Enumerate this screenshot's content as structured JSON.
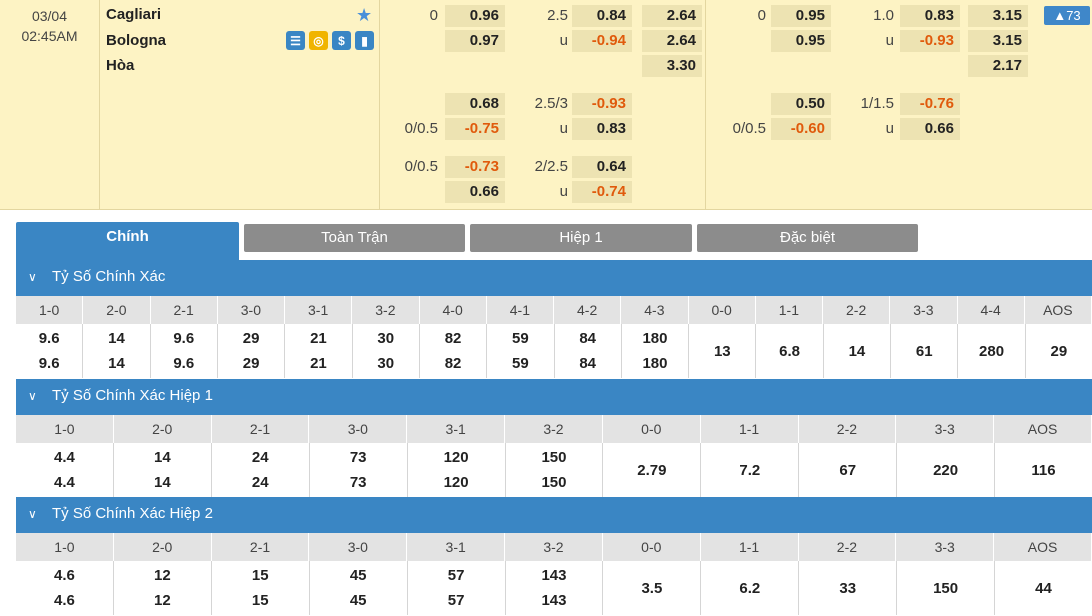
{
  "match": {
    "date": "03/04",
    "time": "02:45AM",
    "home": "Cagliari",
    "away": "Bologna",
    "draw": "Hòa",
    "badge": "▲73",
    "icons": [
      "lineup-icon",
      "coin-icon",
      "dollar-icon",
      "stats-icon"
    ],
    "main_odds": {
      "ft_hdp": {
        "line": "0",
        "home": "0.96",
        "away": "0.97"
      },
      "ft_ou": {
        "line": "2.5",
        "under_label": "u",
        "over": "0.84",
        "under": "-0.94"
      },
      "ft_1x2": {
        "home": "2.64",
        "away": "2.64",
        "draw": "3.30"
      },
      "h1_hdp": {
        "line": "0",
        "home": "0.95",
        "away": "0.95"
      },
      "h1_ou": {
        "line": "1.0",
        "under_label": "u",
        "over": "0.83",
        "under": "-0.93"
      },
      "h1_1x2": {
        "home": "3.15",
        "away": "3.15",
        "draw": "2.17"
      }
    },
    "alt_odds": [
      {
        "hdp_line": "",
        "hdp_line2": "0/0.5",
        "hdp_home": "0.68",
        "hdp_away": "-0.75",
        "ou_line": "2.5/3",
        "ou_label": "u",
        "ou_over": "-0.93",
        "ou_under": "0.83",
        "h1_line": "",
        "h1_line2": "0/0.5",
        "h1_home": "0.50",
        "h1_away": "-0.60",
        "h1_ou_line": "1/1.5",
        "h1_ou_label": "u",
        "h1_ou_over": "-0.76",
        "h1_ou_under": "0.66"
      },
      {
        "hdp_line": "0/0.5",
        "hdp_home": "-0.73",
        "hdp_away": "0.66",
        "ou_line": "2/2.5",
        "ou_label": "u",
        "ou_over": "0.64",
        "ou_under": "-0.74"
      }
    ]
  },
  "tabs": [
    "Chính",
    "Toàn Trận",
    "Hiệp 1",
    "Đặc biệt"
  ],
  "sections": [
    {
      "title": "Tỷ Số Chính Xác",
      "headers": [
        "1-0",
        "2-0",
        "2-1",
        "3-0",
        "3-1",
        "3-2",
        "4-0",
        "4-1",
        "4-2",
        "4-3",
        "0-0",
        "1-1",
        "2-2",
        "3-3",
        "4-4",
        "AOS"
      ],
      "top": [
        "9.6",
        "14",
        "9.6",
        "29",
        "21",
        "30",
        "82",
        "59",
        "84",
        "180",
        "13",
        "6.8",
        "14",
        "61",
        "280",
        "29"
      ],
      "bottom": [
        "9.6",
        "14",
        "9.6",
        "29",
        "21",
        "30",
        "82",
        "59",
        "84",
        "180",
        "",
        "",
        "",
        "",
        "",
        ""
      ]
    },
    {
      "title": "Tỷ Số Chính Xác Hiệp 1",
      "headers": [
        "1-0",
        "2-0",
        "2-1",
        "3-0",
        "3-1",
        "3-2",
        "0-0",
        "1-1",
        "2-2",
        "3-3",
        "AOS"
      ],
      "top": [
        "4.4",
        "14",
        "24",
        "73",
        "120",
        "150",
        "2.79",
        "7.2",
        "67",
        "220",
        "116"
      ],
      "bottom": [
        "4.4",
        "14",
        "24",
        "73",
        "120",
        "150",
        "",
        "",
        "",
        "",
        ""
      ]
    },
    {
      "title": "Tỷ Số Chính Xác Hiệp 2",
      "headers": [
        "1-0",
        "2-0",
        "2-1",
        "3-0",
        "3-1",
        "3-2",
        "0-0",
        "1-1",
        "2-2",
        "3-3",
        "AOS"
      ],
      "top": [
        "4.6",
        "12",
        "15",
        "45",
        "57",
        "143",
        "3.5",
        "6.2",
        "33",
        "150",
        "44"
      ],
      "bottom": [
        "4.6",
        "12",
        "15",
        "45",
        "57",
        "143",
        "",
        "",
        "",
        "",
        ""
      ]
    }
  ]
}
